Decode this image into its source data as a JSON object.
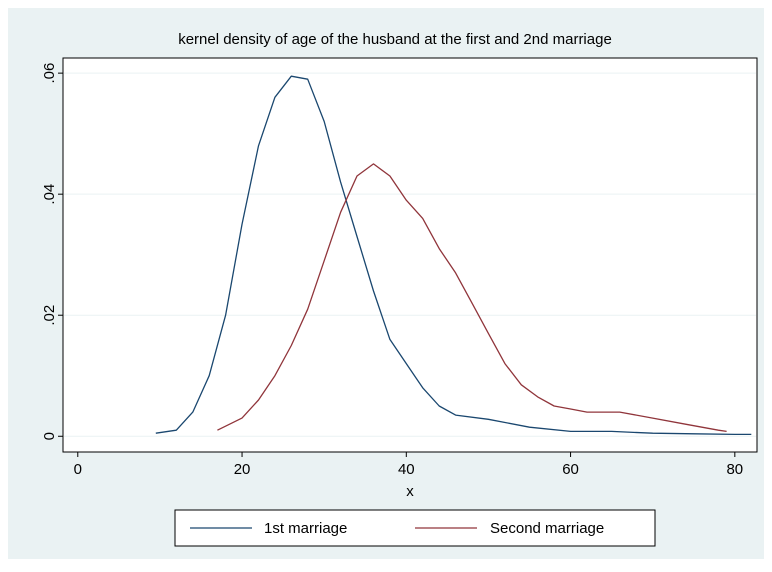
{
  "chart_data": {
    "type": "line",
    "title": "kernel density of age of the husband at the first and 2nd marriage",
    "x_label": "x",
    "xlim": [
      -1.8,
      82.7
    ],
    "xticks": [
      0,
      20,
      40,
      60,
      80
    ],
    "ylim": [
      -0.0026,
      0.0625
    ],
    "yticks": [
      {
        "value": 0,
        "label": "0"
      },
      {
        "value": 0.02,
        "label": ".02"
      },
      {
        "value": 0.04,
        "label": ".04"
      },
      {
        "value": 0.06,
        "label": ".06"
      }
    ],
    "grid": true,
    "legend": "bottom",
    "series": [
      {
        "name": "1st marriage",
        "color": "#1a476f",
        "x": [
          9.5,
          12,
          14,
          16,
          18,
          20,
          22,
          24,
          26,
          28,
          30,
          32,
          34,
          36,
          38,
          40,
          42,
          44,
          46,
          50,
          55,
          60,
          65,
          70,
          75,
          80,
          82
        ],
        "values": [
          0.0005,
          0.001,
          0.004,
          0.01,
          0.02,
          0.035,
          0.048,
          0.056,
          0.0595,
          0.059,
          0.052,
          0.042,
          0.033,
          0.024,
          0.016,
          0.012,
          0.008,
          0.005,
          0.0035,
          0.0028,
          0.0015,
          0.0008,
          0.0008,
          0.0005,
          0.0004,
          0.0003,
          0.0003
        ]
      },
      {
        "name": "Second marriage",
        "color": "#90353b",
        "x": [
          17,
          20,
          22,
          24,
          26,
          28,
          30,
          32,
          34,
          36,
          38,
          40,
          42,
          44,
          46,
          48,
          50,
          52,
          54,
          56,
          58,
          60,
          62,
          66,
          70,
          74,
          78,
          79
        ],
        "values": [
          0.001,
          0.003,
          0.006,
          0.01,
          0.015,
          0.021,
          0.029,
          0.037,
          0.043,
          0.045,
          0.043,
          0.039,
          0.036,
          0.031,
          0.027,
          0.022,
          0.017,
          0.012,
          0.0085,
          0.0065,
          0.005,
          0.0045,
          0.004,
          0.004,
          0.003,
          0.002,
          0.001,
          0.0008
        ]
      }
    ]
  }
}
